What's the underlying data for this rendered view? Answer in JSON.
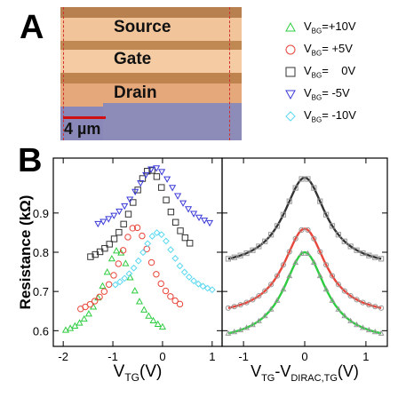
{
  "panel_a": {
    "letter": "A",
    "labels": [
      "Source",
      "Gate",
      "Drain"
    ],
    "scale_bar": "4 µm"
  },
  "panel_b": {
    "letter": "B"
  },
  "legend": [
    {
      "name": "V",
      "sub": "BG",
      "value": "=+10V",
      "color": "#2ecc40",
      "marker": "triangle-up"
    },
    {
      "name": "V",
      "sub": "BG",
      "value": "= +5V",
      "color": "#e8463a",
      "marker": "circle"
    },
    {
      "name": "V",
      "sub": "BG",
      "value": "=    0V",
      "color": "#333333",
      "marker": "square"
    },
    {
      "name": "V",
      "sub": "BG",
      "value": "= -5V",
      "color": "#3838d8",
      "marker": "triangle-down"
    },
    {
      "name": "V",
      "sub": "BG",
      "value": "= -10V",
      "color": "#5ad8f0",
      "marker": "diamond"
    }
  ],
  "chart_data": [
    {
      "type": "scatter",
      "xlabel_main": "V",
      "xlabel_sub": "TG",
      "xlabel_unit": "(V)",
      "ylabel": "Resistance (kΩ)",
      "xlim": [
        -2.2,
        1.2
      ],
      "ylim": [
        0.56,
        1.04
      ],
      "xticks": [
        -2,
        -1,
        0,
        1
      ],
      "yticks": [
        0.6,
        0.7,
        0.8,
        0.9
      ],
      "series": [
        {
          "color": "#2ecc40",
          "marker": "triangle-up",
          "peak_x": -0.9,
          "peak_y": 0.805,
          "rmin": 0.575,
          "width": 0.38,
          "xmin": -1.95,
          "xmax": 0.0
        },
        {
          "color": "#e8463a",
          "marker": "circle",
          "peak_x": -0.55,
          "peak_y": 0.865,
          "rmin": 0.625,
          "width": 0.42,
          "xmin": -1.65,
          "xmax": 0.35
        },
        {
          "color": "#333333",
          "marker": "square",
          "peak_x": -0.25,
          "peak_y": 1.01,
          "rmin": 0.75,
          "width": 0.5,
          "xmin": -1.45,
          "xmax": 0.55
        },
        {
          "color": "#3838d8",
          "marker": "triangle-down",
          "peak_x": -0.15,
          "peak_y": 1.015,
          "rmin": 0.84,
          "width": 0.55,
          "xmin": -1.3,
          "xmax": 0.95
        },
        {
          "color": "#5ad8f0",
          "marker": "diamond",
          "peak_x": -0.1,
          "peak_y": 0.85,
          "rmin": 0.68,
          "width": 0.45,
          "xmin": -0.95,
          "xmax": 1.0
        }
      ]
    },
    {
      "type": "scatter",
      "xlabel_main": "V",
      "xlabel_sub1": "TG",
      "xlabel_mid": "-V",
      "xlabel_sub2": "DIRAC,TG",
      "xlabel_unit": "(V)",
      "xlim": [
        -1.35,
        1.35
      ],
      "ylim": [
        0.56,
        1.04
      ],
      "xticks": [
        -1,
        0,
        1
      ],
      "yticks": [
        0.6,
        0.7,
        0.8,
        0.9
      ],
      "series": [
        {
          "color": "#2ecc40",
          "marker": "triangle-up",
          "peak_y": 0.8,
          "rmin": 0.57,
          "width": 0.42
        },
        {
          "color": "#e8463a",
          "marker": "circle",
          "peak_y": 0.86,
          "rmin": 0.635,
          "width": 0.42
        },
        {
          "color": "#333333",
          "marker": "square",
          "peak_y": 0.99,
          "rmin": 0.76,
          "width": 0.42
        }
      ]
    }
  ]
}
